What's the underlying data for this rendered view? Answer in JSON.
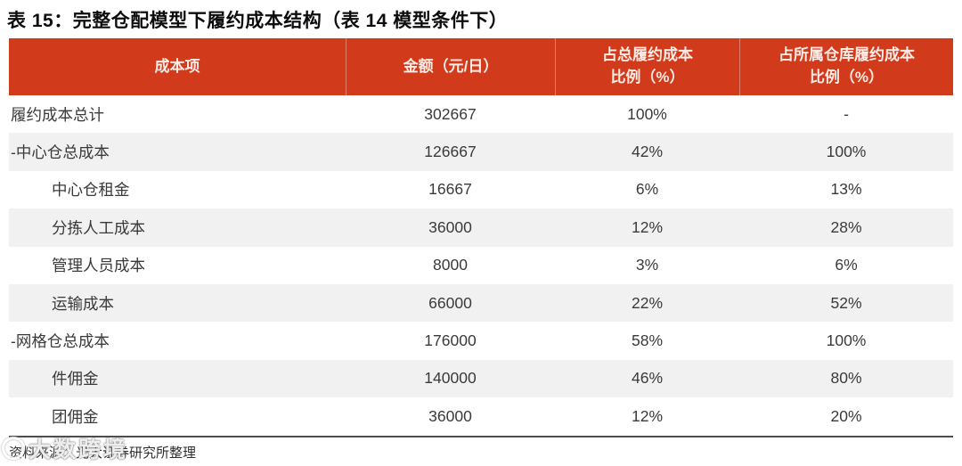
{
  "title": "表 15：完整仓配模型下履约成本结构（表 14 模型条件下）",
  "table": {
    "columns": {
      "cost_item": "成本项",
      "amount": "金额（元/日）",
      "pct_of_total": "占总履约成本\n比例（%）",
      "pct_of_warehouse": "占所属仓库履约成本\n比例（%）"
    },
    "rows": [
      {
        "label": "履约成本总计",
        "indent": false,
        "amount": "302667",
        "pct_total": "100%",
        "pct_warehouse": "-"
      },
      {
        "label": "-中心仓总成本",
        "indent": false,
        "amount": "126667",
        "pct_total": "42%",
        "pct_warehouse": "100%"
      },
      {
        "label": "中心仓租金",
        "indent": true,
        "amount": "16667",
        "pct_total": "6%",
        "pct_warehouse": "13%"
      },
      {
        "label": "分拣人工成本",
        "indent": true,
        "amount": "36000",
        "pct_total": "12%",
        "pct_warehouse": "28%"
      },
      {
        "label": "管理人员成本",
        "indent": true,
        "amount": "8000",
        "pct_total": "3%",
        "pct_warehouse": "6%"
      },
      {
        "label": "运输成本",
        "indent": true,
        "amount": "66000",
        "pct_total": "22%",
        "pct_warehouse": "52%"
      },
      {
        "label": "-网格仓总成本",
        "indent": false,
        "amount": "176000",
        "pct_total": "58%",
        "pct_warehouse": "100%"
      },
      {
        "label": "件佣金",
        "indent": true,
        "amount": "140000",
        "pct_total": "46%",
        "pct_warehouse": "80%"
      },
      {
        "label": "团佣金",
        "indent": true,
        "amount": "36000",
        "pct_total": "12%",
        "pct_warehouse": "20%"
      }
    ]
  },
  "footer": {
    "source": "资料来源：光大证券研究所整理"
  },
  "watermark": {
    "text": "大数跨境"
  },
  "colors": {
    "header_bg": "#d23a1c",
    "header_text": "#ffece6",
    "stripe": "#f1f1f1"
  }
}
